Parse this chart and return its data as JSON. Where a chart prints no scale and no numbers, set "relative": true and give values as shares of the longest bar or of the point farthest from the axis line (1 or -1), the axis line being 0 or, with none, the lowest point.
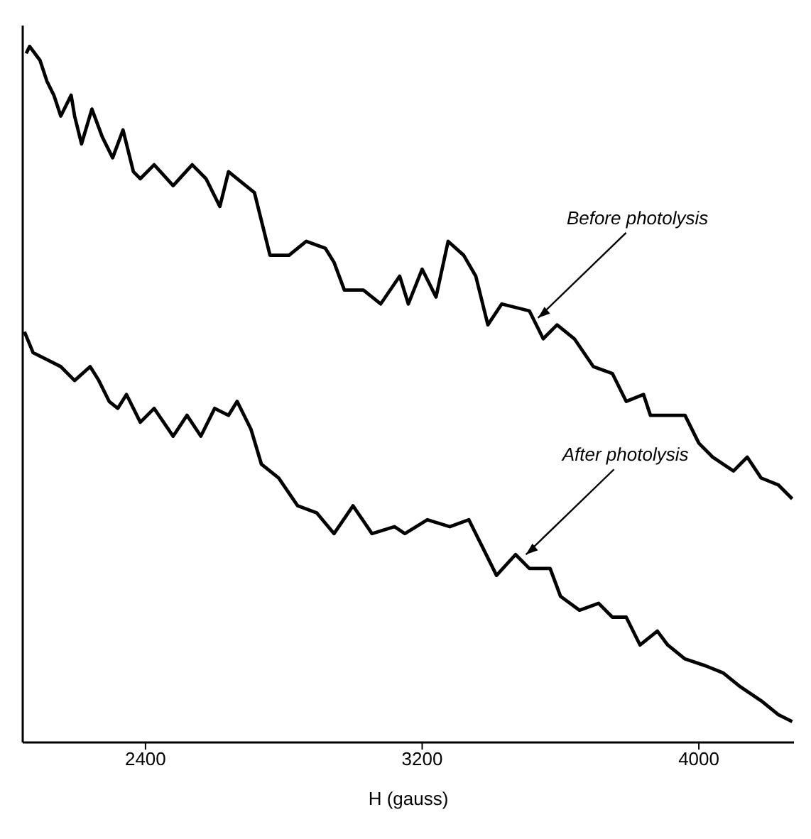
{
  "chart_data": {
    "type": "line",
    "xlabel": "H (gauss)",
    "relative": true,
    "xlim": [
      2045,
      4275
    ],
    "xticks": [
      2400,
      3200,
      4000
    ],
    "grid": false,
    "marker": "none",
    "annotations": [
      {
        "text": "Before photolysis",
        "x": 3535,
        "y": 0.61
      },
      {
        "text": "After photolysis",
        "x": 3500,
        "y": 0.27
      }
    ],
    "series": [
      {
        "color": "#000000",
        "x": [
          2055,
          2065,
          2095,
          2115,
          2135,
          2155,
          2185,
          2195,
          2215,
          2245,
          2275,
          2305,
          2335,
          2365,
          2385,
          2425,
          2480,
          2535,
          2575,
          2615,
          2640,
          2715,
          2740,
          2760,
          2815,
          2865,
          2920,
          2945,
          2975,
          3030,
          3080,
          3135,
          3160,
          3200,
          3240,
          3275,
          3320,
          3355,
          3390,
          3430,
          3510,
          3550,
          3590,
          3640,
          3695,
          3750,
          3790,
          3840,
          3860,
          3910,
          3960,
          4000,
          4040,
          4100,
          4140,
          4180,
          4230,
          4270
        ],
        "values": [
          0.99,
          1.0,
          0.98,
          0.95,
          0.93,
          0.9,
          0.93,
          0.9,
          0.86,
          0.91,
          0.87,
          0.84,
          0.88,
          0.82,
          0.81,
          0.83,
          0.8,
          0.83,
          0.81,
          0.77,
          0.82,
          0.79,
          0.74,
          0.7,
          0.7,
          0.72,
          0.71,
          0.69,
          0.65,
          0.65,
          0.63,
          0.67,
          0.63,
          0.68,
          0.64,
          0.72,
          0.7,
          0.67,
          0.6,
          0.63,
          0.62,
          0.58,
          0.6,
          0.58,
          0.54,
          0.53,
          0.49,
          0.5,
          0.47,
          0.47,
          0.47,
          0.43,
          0.41,
          0.39,
          0.41,
          0.38,
          0.37,
          0.35
        ]
      },
      {
        "color": "#000000",
        "x": [
          2050,
          2075,
          2115,
          2155,
          2195,
          2240,
          2265,
          2295,
          2320,
          2345,
          2385,
          2425,
          2480,
          2520,
          2560,
          2600,
          2640,
          2665,
          2705,
          2735,
          2785,
          2840,
          2895,
          2945,
          3000,
          3055,
          3120,
          3150,
          3215,
          3280,
          3335,
          3375,
          3415,
          3470,
          3510,
          3570,
          3600,
          3655,
          3710,
          3750,
          3790,
          3830,
          3880,
          3910,
          3960,
          4020,
          4070,
          4120,
          4180,
          4230,
          4270
        ],
        "values": [
          0.59,
          0.56,
          0.55,
          0.54,
          0.52,
          0.54,
          0.52,
          0.49,
          0.48,
          0.5,
          0.46,
          0.48,
          0.44,
          0.47,
          0.44,
          0.48,
          0.47,
          0.49,
          0.45,
          0.4,
          0.38,
          0.34,
          0.33,
          0.3,
          0.34,
          0.3,
          0.31,
          0.3,
          0.32,
          0.31,
          0.32,
          0.28,
          0.24,
          0.27,
          0.25,
          0.25,
          0.21,
          0.19,
          0.2,
          0.18,
          0.18,
          0.14,
          0.16,
          0.14,
          0.12,
          0.11,
          0.1,
          0.08,
          0.06,
          0.04,
          0.03
        ]
      }
    ]
  }
}
